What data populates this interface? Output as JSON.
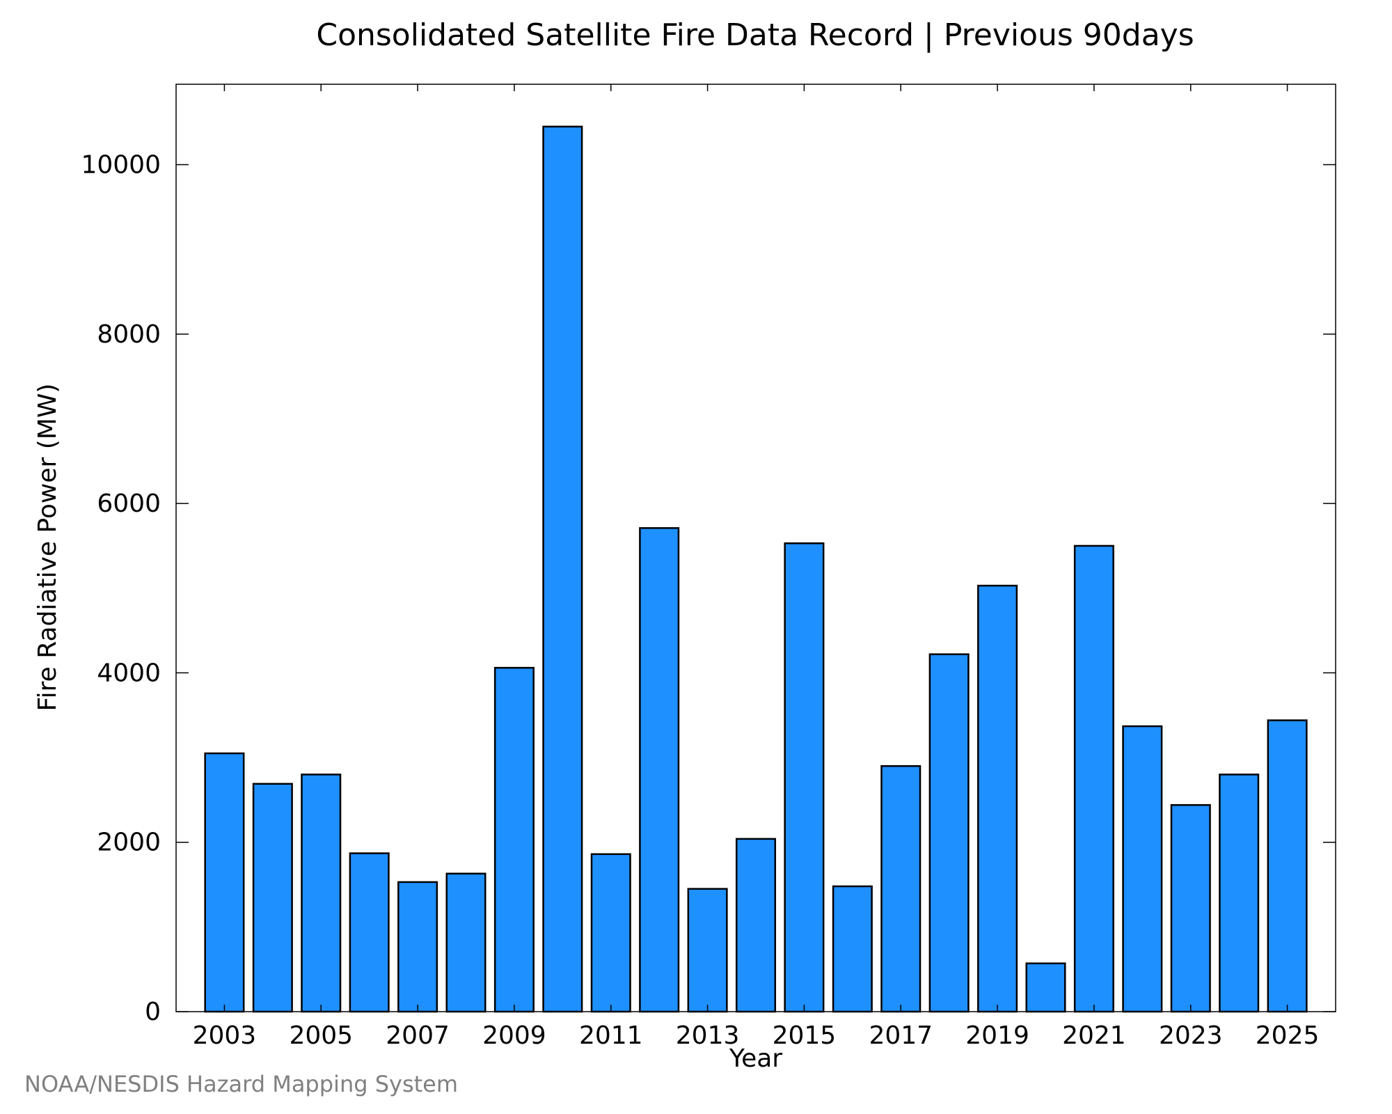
{
  "chart_data": {
    "type": "bar",
    "title": "Consolidated Satellite Fire Data Record | Previous 90days",
    "xlabel": "Year",
    "ylabel": "Fire Radiative Power (MW)",
    "categories": [
      "2003",
      "2004",
      "2005",
      "2006",
      "2007",
      "2008",
      "2009",
      "2010",
      "2011",
      "2012",
      "2013",
      "2014",
      "2015",
      "2016",
      "2017",
      "2018",
      "2019",
      "2020",
      "2021",
      "2022",
      "2023",
      "2024",
      "2025"
    ],
    "values": [
      3050,
      2690,
      2800,
      1870,
      1530,
      1630,
      4060,
      10450,
      1860,
      5710,
      1450,
      2040,
      5530,
      1480,
      2900,
      4220,
      5030,
      570,
      5500,
      3370,
      2440,
      2800,
      3440
    ],
    "x_tick_labels": [
      "2003",
      "2005",
      "2007",
      "2009",
      "2011",
      "2013",
      "2015",
      "2017",
      "2019",
      "2021",
      "2023",
      "2025"
    ],
    "y_ticks": [
      0,
      2000,
      4000,
      6000,
      8000,
      10000
    ],
    "ylim": [
      0,
      10950
    ],
    "xlim": [
      2002,
      2026
    ],
    "grid": false,
    "legend": "none",
    "bar_color": "#1e90ff",
    "edge_color": "#000000"
  },
  "footer": {
    "credit": "NOAA/NESDIS Hazard Mapping System"
  }
}
